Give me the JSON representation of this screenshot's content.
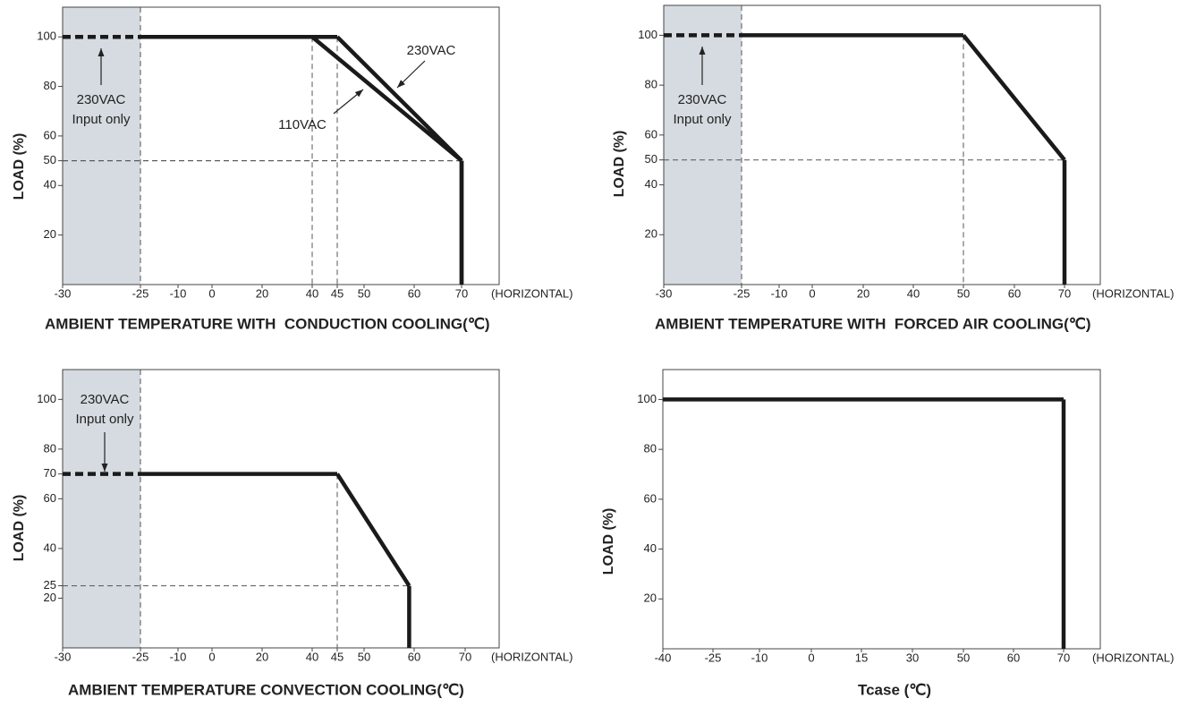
{
  "chart_data": [
    {
      "type": "line",
      "x_label": "AMBIENT TEMPERATURE WITH  CONDUCTION COOLING(℃)",
      "y_label": "LOAD (%)",
      "x_note": "(HORIZONTAL)",
      "xlim": [
        -30,
        78
      ],
      "xticks": [
        -30,
        -25,
        -10,
        0,
        20,
        40,
        45,
        50,
        60,
        70
      ],
      "ylim": [
        0,
        112
      ],
      "yticks": [
        20,
        40,
        50,
        60,
        80,
        100
      ],
      "shade": [
        -30,
        -25
      ],
      "annotation": [
        "230VAC",
        "Input only"
      ],
      "series": [
        {
          "name": "230VAC",
          "color": "#1a1a1a",
          "x": [
            -30,
            -25,
            45,
            70,
            70
          ],
          "values": [
            100,
            100,
            100,
            50,
            0
          ]
        },
        {
          "name": "110VAC",
          "color": "#1a1a1a",
          "x": [
            -30,
            -25,
            40,
            70,
            70
          ],
          "values": [
            100,
            100,
            100,
            50,
            0
          ]
        }
      ]
    },
    {
      "type": "line",
      "x_label": "AMBIENT TEMPERATURE WITH  FORCED AIR COOLING(℃)",
      "y_label": "LOAD (%)",
      "x_note": "(HORIZONTAL)",
      "xlim": [
        -30,
        78
      ],
      "xticks": [
        -30,
        -25,
        -10,
        0,
        20,
        40,
        50,
        60,
        70
      ],
      "ylim": [
        0,
        112
      ],
      "yticks": [
        20,
        40,
        50,
        60,
        80,
        100
      ],
      "shade": [
        -30,
        -25
      ],
      "annotation": [
        "230VAC",
        "Input only"
      ],
      "series": [
        {
          "color": "#1a1a1a",
          "x": [
            -30,
            -25,
            50,
            70,
            70
          ],
          "values": [
            100,
            100,
            100,
            50,
            0
          ]
        }
      ]
    },
    {
      "type": "line",
      "x_label": "AMBIENT TEMPERATURE CONVECTION COOLING(℃)",
      "y_label": "LOAD (%)",
      "x_note": "(HORIZONTAL)",
      "xlim": [
        -30,
        78
      ],
      "xticks": [
        -30,
        -25,
        -10,
        0,
        20,
        40,
        45,
        50,
        60,
        70
      ],
      "ylim": [
        0,
        112
      ],
      "yticks": [
        20,
        25,
        40,
        60,
        70,
        80,
        100
      ],
      "shade": [
        -30,
        -25
      ],
      "annotation": [
        "230VAC",
        "Input only"
      ],
      "series": [
        {
          "color": "#1a1a1a",
          "x": [
            -30,
            -25,
            45,
            59,
            59
          ],
          "values": [
            70,
            70,
            70,
            25,
            0
          ]
        }
      ]
    },
    {
      "type": "line",
      "x_label": "Tcase (℃)",
      "y_label": "LOAD (%)",
      "x_note": "(HORIZONTAL)",
      "xlim": [
        -40,
        78
      ],
      "xticks": [
        -40,
        -25,
        -10,
        0,
        15,
        30,
        50,
        60,
        70
      ],
      "ylim": [
        0,
        112
      ],
      "yticks": [
        20,
        40,
        60,
        80,
        100
      ],
      "series": [
        {
          "color": "#1a1a1a",
          "x": [
            -40,
            70,
            70
          ],
          "values": [
            100,
            100,
            0
          ]
        }
      ]
    }
  ]
}
